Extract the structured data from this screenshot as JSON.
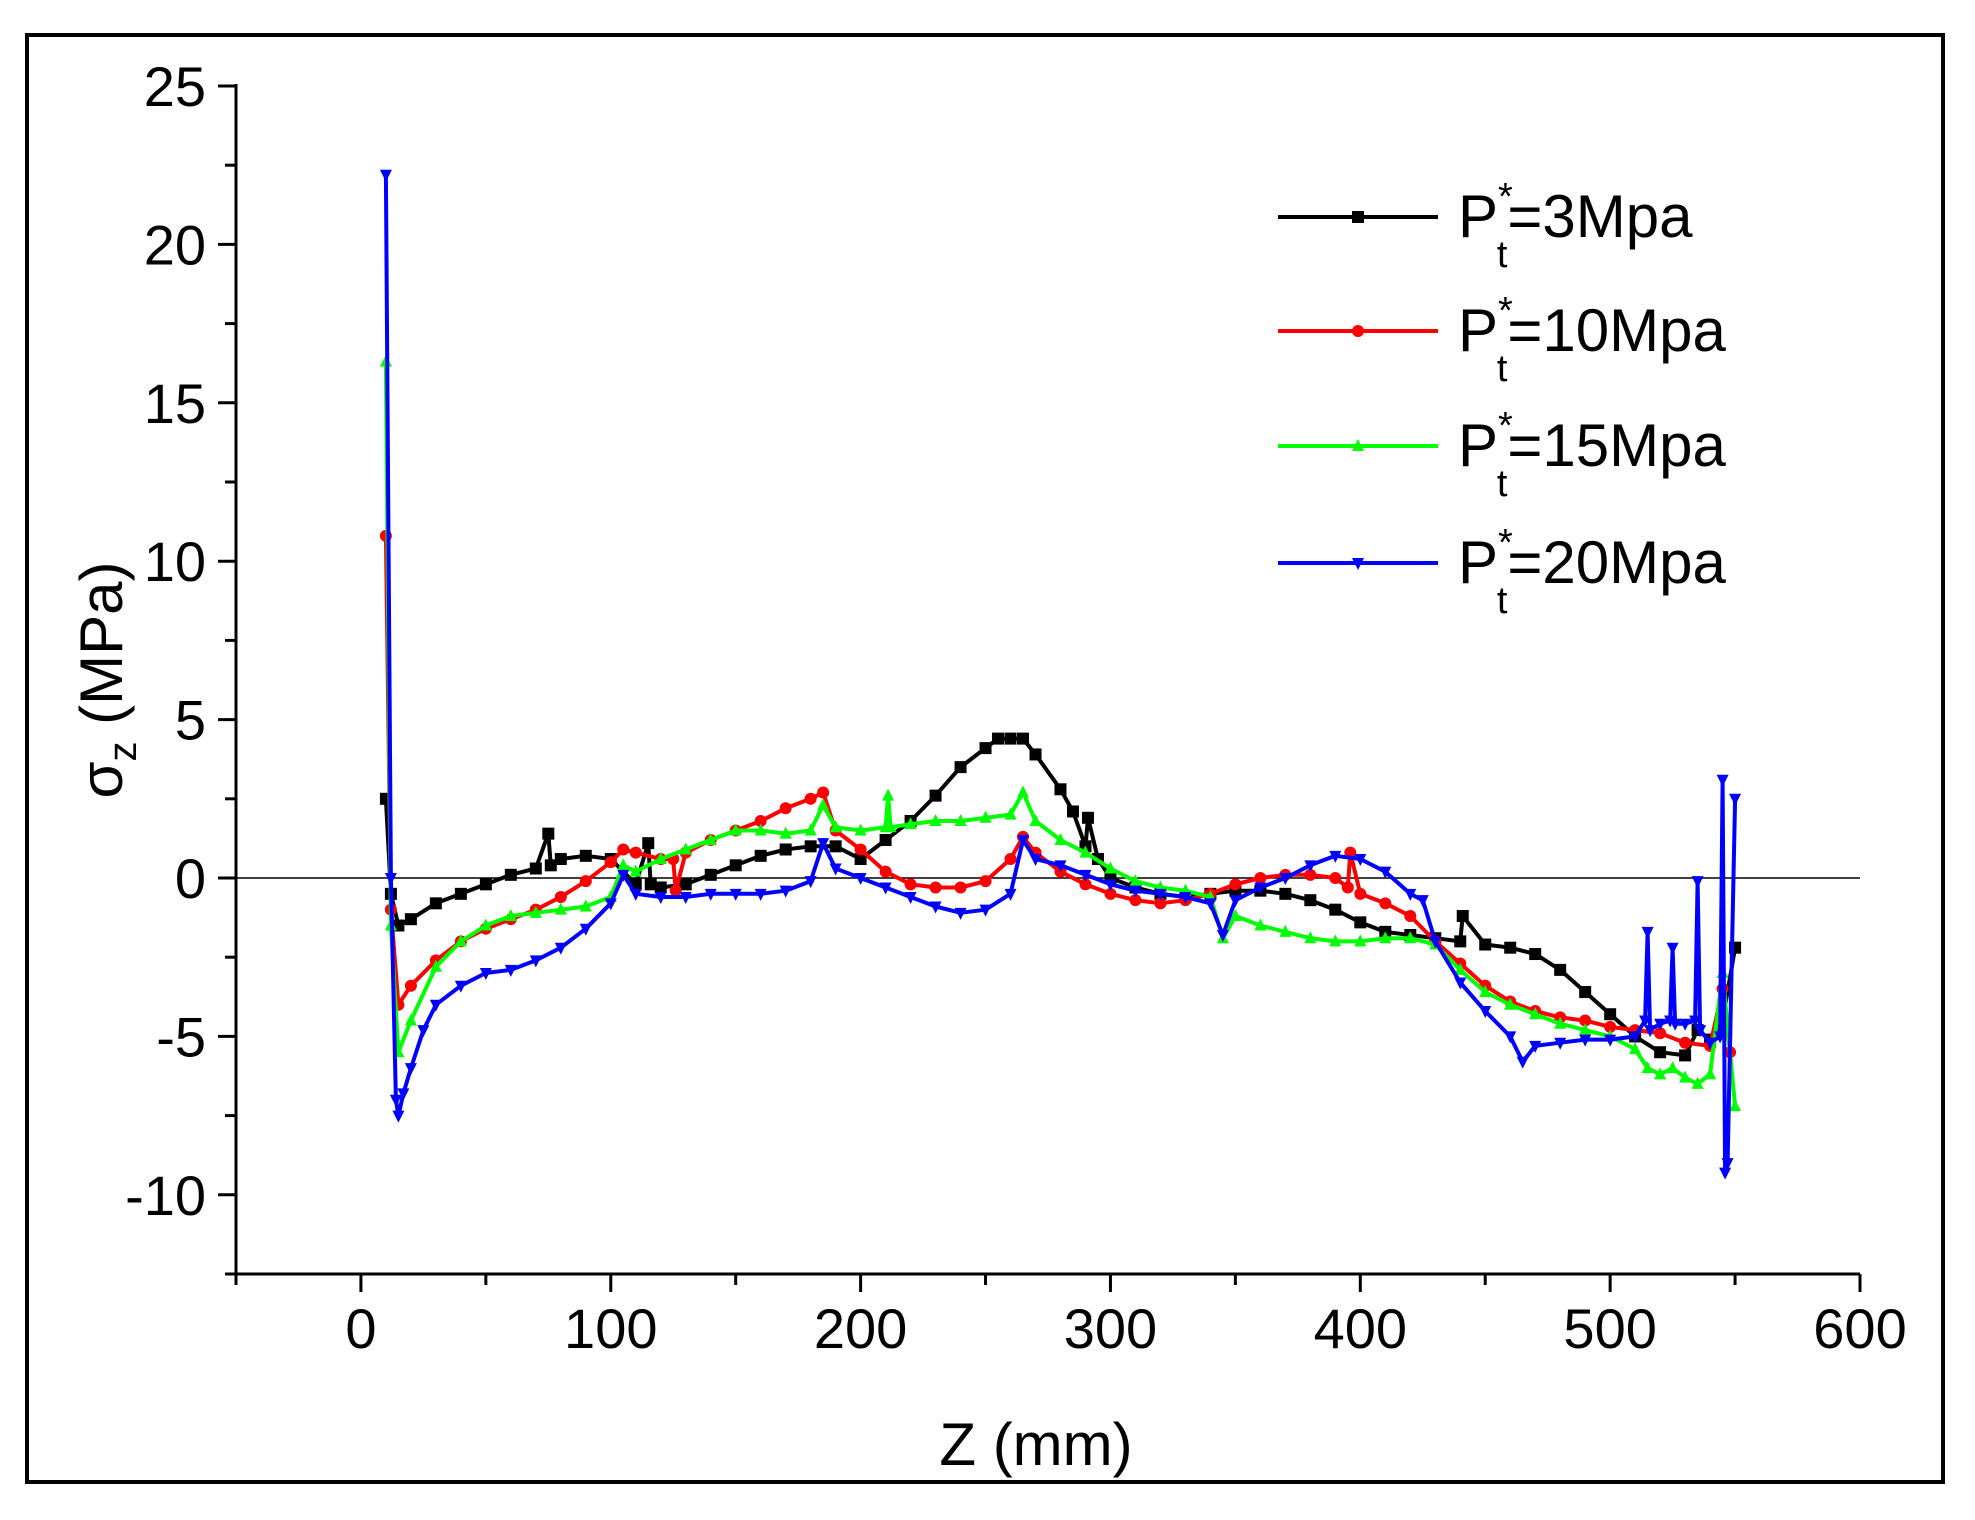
{
  "chart_data": {
    "type": "line",
    "title": "",
    "xlabel": "Z (mm)",
    "ylabel": {
      "symbol": "σ",
      "subscript": "z",
      "unit": " (MPa)"
    },
    "xlim": [
      -50,
      600
    ],
    "ylim": [
      -12.5,
      25
    ],
    "x_ticks": [
      0,
      100,
      200,
      300,
      400,
      500,
      600
    ],
    "x_tick_labels": [
      "0",
      "100",
      "200",
      "300",
      "400",
      "500",
      "600"
    ],
    "y_ticks": [
      -10,
      -5,
      0,
      5,
      10,
      15,
      20,
      25
    ],
    "y_tick_labels": [
      "-10",
      "-5",
      "0",
      "5",
      "10",
      "15",
      "20",
      "25"
    ],
    "reference_line_y": 0,
    "legend_position": "top-right",
    "series": [
      {
        "name": "P*t=3Mpa",
        "label": {
          "main": "P",
          "sup": "*",
          "sub": "t",
          "rest": "=3Mpa"
        },
        "color": "#000000",
        "marker": "square",
        "x": [
          10,
          12,
          15,
          20,
          30,
          40,
          50,
          60,
          70,
          75,
          76,
          80,
          90,
          100,
          110,
          115,
          116,
          120,
          130,
          140,
          150,
          160,
          170,
          180,
          190,
          200,
          210,
          220,
          230,
          240,
          250,
          255,
          260,
          265,
          270,
          280,
          285,
          290,
          291,
          295,
          300,
          310,
          320,
          330,
          340,
          350,
          360,
          370,
          380,
          390,
          400,
          410,
          420,
          430,
          440,
          441,
          450,
          460,
          470,
          480,
          490,
          500,
          510,
          520,
          530,
          535,
          540,
          545,
          550
        ],
        "y": [
          2.5,
          -0.5,
          -1.5,
          -1.3,
          -0.8,
          -0.5,
          -0.2,
          0.1,
          0.3,
          1.4,
          0.4,
          0.6,
          0.7,
          0.6,
          -0.2,
          1.1,
          -0.2,
          -0.3,
          -0.2,
          0.1,
          0.4,
          0.7,
          0.9,
          1.0,
          1.0,
          0.6,
          1.2,
          1.8,
          2.6,
          3.5,
          4.1,
          4.4,
          4.4,
          4.4,
          3.9,
          2.8,
          2.1,
          1.0,
          1.9,
          0.6,
          0.0,
          -0.3,
          -0.5,
          -0.6,
          -0.5,
          -0.4,
          -0.4,
          -0.5,
          -0.7,
          -1.0,
          -1.4,
          -1.7,
          -1.8,
          -1.9,
          -2.0,
          -1.2,
          -2.1,
          -2.2,
          -2.4,
          -2.9,
          -3.6,
          -4.3,
          -5.0,
          -5.5,
          -5.6,
          -4.8,
          -5.1,
          -4.5,
          -2.2
        ]
      },
      {
        "name": "P*t=10Mpa",
        "label": {
          "main": "P",
          "sup": "*",
          "sub": "t",
          "rest": "=10Mpa"
        },
        "color": "#ff0000",
        "marker": "circle",
        "x": [
          10,
          12,
          15,
          20,
          30,
          40,
          50,
          60,
          70,
          80,
          90,
          100,
          105,
          110,
          120,
          125,
          126,
          130,
          140,
          150,
          160,
          170,
          180,
          185,
          190,
          200,
          210,
          220,
          230,
          240,
          250,
          260,
          265,
          270,
          280,
          290,
          300,
          310,
          320,
          330,
          340,
          350,
          360,
          370,
          380,
          390,
          395,
          396,
          400,
          410,
          420,
          430,
          440,
          450,
          460,
          470,
          480,
          490,
          500,
          510,
          520,
          530,
          540,
          545,
          548
        ],
        "y": [
          10.8,
          -1.0,
          -4.0,
          -3.4,
          -2.6,
          -2.0,
          -1.6,
          -1.3,
          -1.0,
          -0.6,
          -0.1,
          0.5,
          0.9,
          0.8,
          0.6,
          0.6,
          -0.4,
          0.8,
          1.2,
          1.5,
          1.8,
          2.2,
          2.5,
          2.7,
          1.5,
          0.9,
          0.2,
          -0.2,
          -0.3,
          -0.3,
          -0.1,
          0.6,
          1.3,
          0.8,
          0.2,
          -0.2,
          -0.5,
          -0.7,
          -0.8,
          -0.7,
          -0.5,
          -0.2,
          0.0,
          0.1,
          0.1,
          0.0,
          -0.3,
          0.8,
          -0.5,
          -0.8,
          -1.2,
          -2.0,
          -2.7,
          -3.4,
          -3.9,
          -4.2,
          -4.4,
          -4.5,
          -4.7,
          -4.8,
          -4.9,
          -5.2,
          -5.3,
          -3.5,
          -5.5
        ]
      },
      {
        "name": "P*t=15Mpa",
        "label": {
          "main": "P",
          "sup": "*",
          "sub": "t",
          "rest": "=15Mpa"
        },
        "color": "#00ff00",
        "marker": "triangle-up",
        "x": [
          10,
          12,
          15,
          20,
          30,
          40,
          50,
          60,
          70,
          80,
          90,
          100,
          105,
          110,
          120,
          130,
          140,
          150,
          160,
          170,
          180,
          185,
          190,
          200,
          210,
          211,
          212,
          220,
          230,
          240,
          250,
          260,
          265,
          270,
          280,
          290,
          300,
          310,
          320,
          330,
          340,
          345,
          350,
          360,
          370,
          380,
          390,
          400,
          410,
          420,
          430,
          440,
          450,
          460,
          470,
          480,
          490,
          500,
          510,
          515,
          520,
          525,
          530,
          535,
          540,
          545,
          550
        ],
        "y": [
          16.3,
          -1.5,
          -5.5,
          -4.5,
          -2.8,
          -2.0,
          -1.5,
          -1.2,
          -1.1,
          -1.0,
          -0.9,
          -0.6,
          0.4,
          0.2,
          0.6,
          0.9,
          1.2,
          1.5,
          1.5,
          1.4,
          1.5,
          2.3,
          1.6,
          1.5,
          1.6,
          2.6,
          1.6,
          1.7,
          1.8,
          1.8,
          1.9,
          2.0,
          2.7,
          1.8,
          1.2,
          0.8,
          0.3,
          -0.1,
          -0.3,
          -0.4,
          -0.6,
          -1.9,
          -1.2,
          -1.5,
          -1.7,
          -1.9,
          -2.0,
          -2.0,
          -1.9,
          -1.9,
          -2.1,
          -2.9,
          -3.6,
          -4.0,
          -4.3,
          -4.6,
          -4.8,
          -5.0,
          -5.4,
          -6.0,
          -6.2,
          -6.0,
          -6.3,
          -6.5,
          -6.2,
          -3.0,
          -7.2
        ]
      },
      {
        "name": "P*t=20Mpa",
        "label": {
          "main": "P",
          "sup": "*",
          "sub": "t",
          "rest": "=20Mpa"
        },
        "color": "#0000ff",
        "marker": "triangle-down",
        "x": [
          10,
          12,
          14,
          15,
          17,
          20,
          25,
          30,
          40,
          50,
          60,
          70,
          80,
          90,
          100,
          105,
          110,
          120,
          130,
          140,
          150,
          160,
          170,
          180,
          185,
          190,
          200,
          210,
          220,
          230,
          240,
          250,
          260,
          265,
          270,
          280,
          290,
          300,
          310,
          320,
          330,
          340,
          345,
          350,
          360,
          370,
          380,
          390,
          400,
          410,
          420,
          425,
          430,
          440,
          450,
          460,
          465,
          470,
          480,
          490,
          500,
          510,
          514,
          515,
          516,
          520,
          524,
          525,
          526,
          530,
          534,
          535,
          536,
          540,
          544,
          545,
          546,
          547,
          550
        ],
        "y": [
          22.2,
          0.0,
          -7.0,
          -7.5,
          -6.8,
          -6.0,
          -4.8,
          -4.0,
          -3.4,
          -3.0,
          -2.9,
          -2.6,
          -2.2,
          -1.6,
          -0.8,
          0.1,
          -0.5,
          -0.6,
          -0.6,
          -0.5,
          -0.5,
          -0.5,
          -0.4,
          -0.1,
          1.1,
          0.3,
          0.0,
          -0.3,
          -0.6,
          -0.9,
          -1.1,
          -1.0,
          -0.5,
          1.2,
          0.6,
          0.4,
          0.1,
          -0.2,
          -0.4,
          -0.5,
          -0.6,
          -0.8,
          -1.8,
          -0.7,
          -0.3,
          0.0,
          0.4,
          0.7,
          0.6,
          0.2,
          -0.5,
          -0.7,
          -2.0,
          -3.3,
          -4.2,
          -5.0,
          -5.8,
          -5.3,
          -5.2,
          -5.1,
          -5.1,
          -5.0,
          -4.5,
          -1.7,
          -4.8,
          -4.6,
          -4.5,
          -2.2,
          -4.6,
          -4.6,
          -4.5,
          -0.1,
          -4.8,
          -5.2,
          -5.0,
          3.1,
          -9.3,
          -9.0,
          2.5
        ]
      }
    ]
  }
}
